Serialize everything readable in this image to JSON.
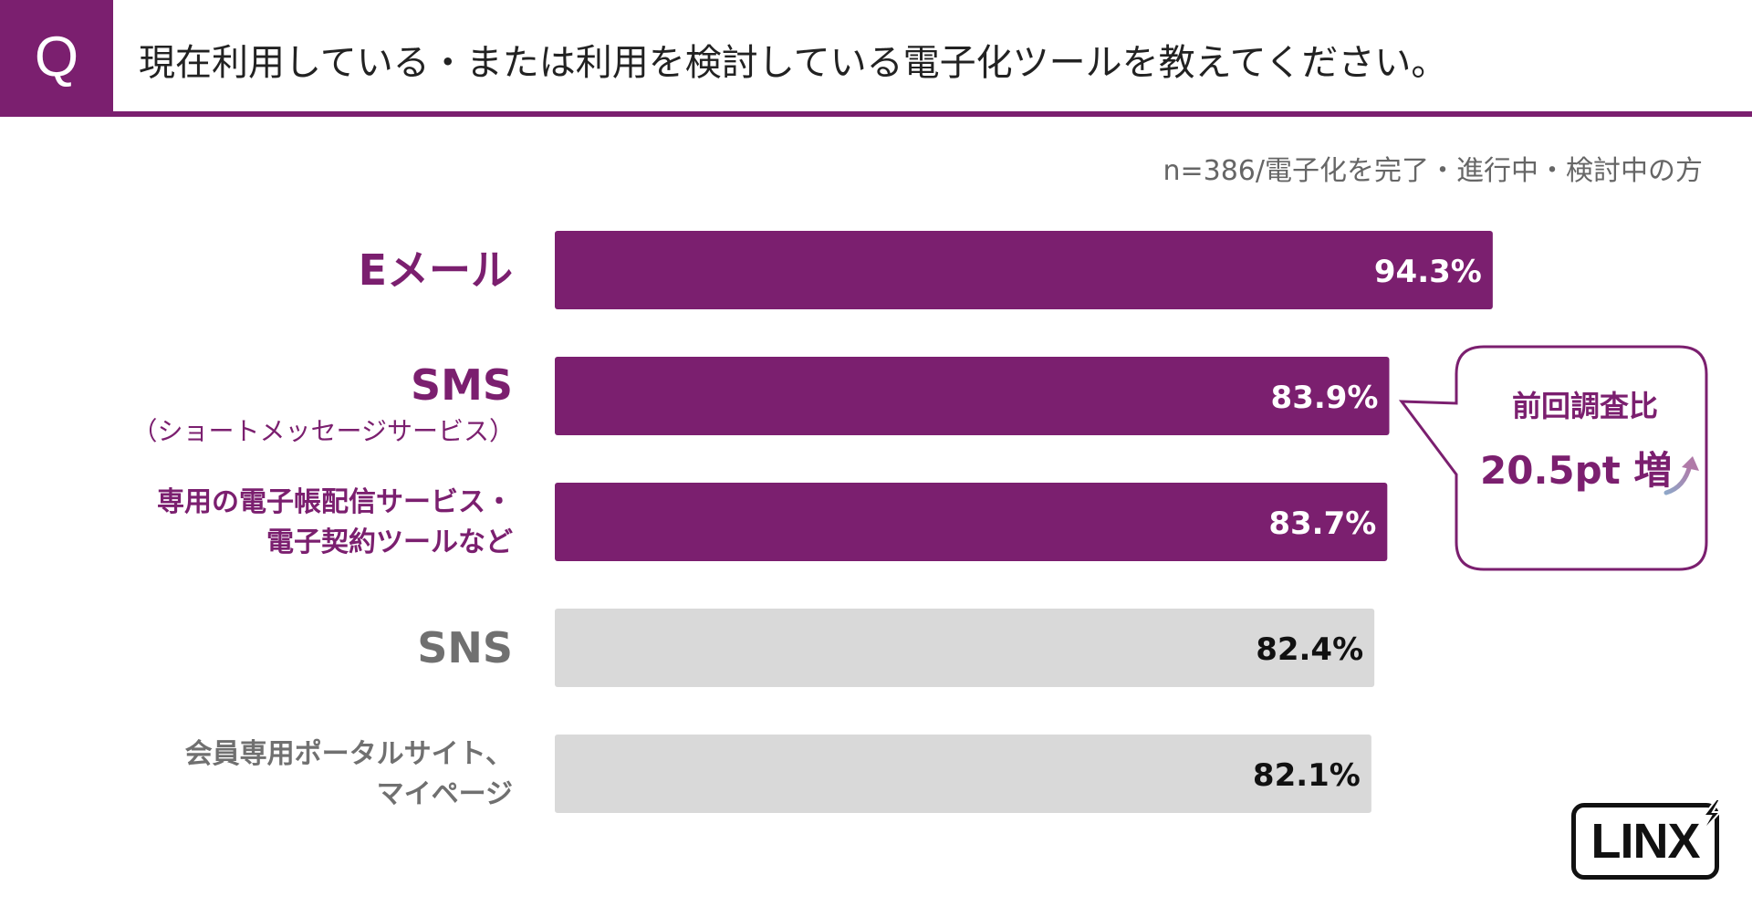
{
  "header": {
    "q_label": "Q",
    "question": "現在利用している・または利用を検討している電子化ツールを教えてください。"
  },
  "sample_note": "n=386/電子化を完了・進行中・検討中の方",
  "colors": {
    "accent": "#7B1F6F",
    "gray_bar": "#D9D9D9",
    "gray_label": "#707070",
    "gray_value": "#111111",
    "bar_value_light": "#FFFFFF"
  },
  "chart_data": {
    "type": "bar",
    "orientation": "horizontal",
    "title": "現在利用している・または利用を検討している電子化ツールを教えてください。",
    "note": "n=386/電子化を完了・進行中・検討中の方",
    "xlim": [
      0,
      100
    ],
    "value_suffix": "%",
    "categories": [
      {
        "label": "Eメール",
        "label_lines": [
          "Eメール"
        ],
        "sub": "",
        "value": 94.3,
        "display": "94.3%",
        "highlight": true
      },
      {
        "label": "SMS（ショートメッセージサービス）",
        "label_lines": [
          "SMS"
        ],
        "sub": "（ショートメッセージサービス）",
        "value": 83.9,
        "display": "83.9%",
        "highlight": true
      },
      {
        "label": "専用の電子帳配信サービス・電子契約ツールなど",
        "label_lines": [
          "専用の電子帳配信サービス・",
          "電子契約ツールなど"
        ],
        "sub": "",
        "value": 83.7,
        "display": "83.7%",
        "highlight": true
      },
      {
        "label": "SNS",
        "label_lines": [
          "SNS"
        ],
        "sub": "",
        "value": 82.4,
        "display": "82.4%",
        "highlight": false
      },
      {
        "label": "会員専用ポータルサイト、マイページ",
        "label_lines": [
          "会員専用ポータルサイト、",
          "マイページ"
        ],
        "sub": "",
        "value": 82.1,
        "display": "82.1%",
        "highlight": false
      }
    ],
    "annotation": {
      "attached_to": "SMS",
      "line1": "前回調査比",
      "line2": "20.5pt 増",
      "icon": "up-arrow-icon"
    }
  },
  "logo": {
    "text": "LINX",
    "icon": "lightning-bolt-icon"
  }
}
